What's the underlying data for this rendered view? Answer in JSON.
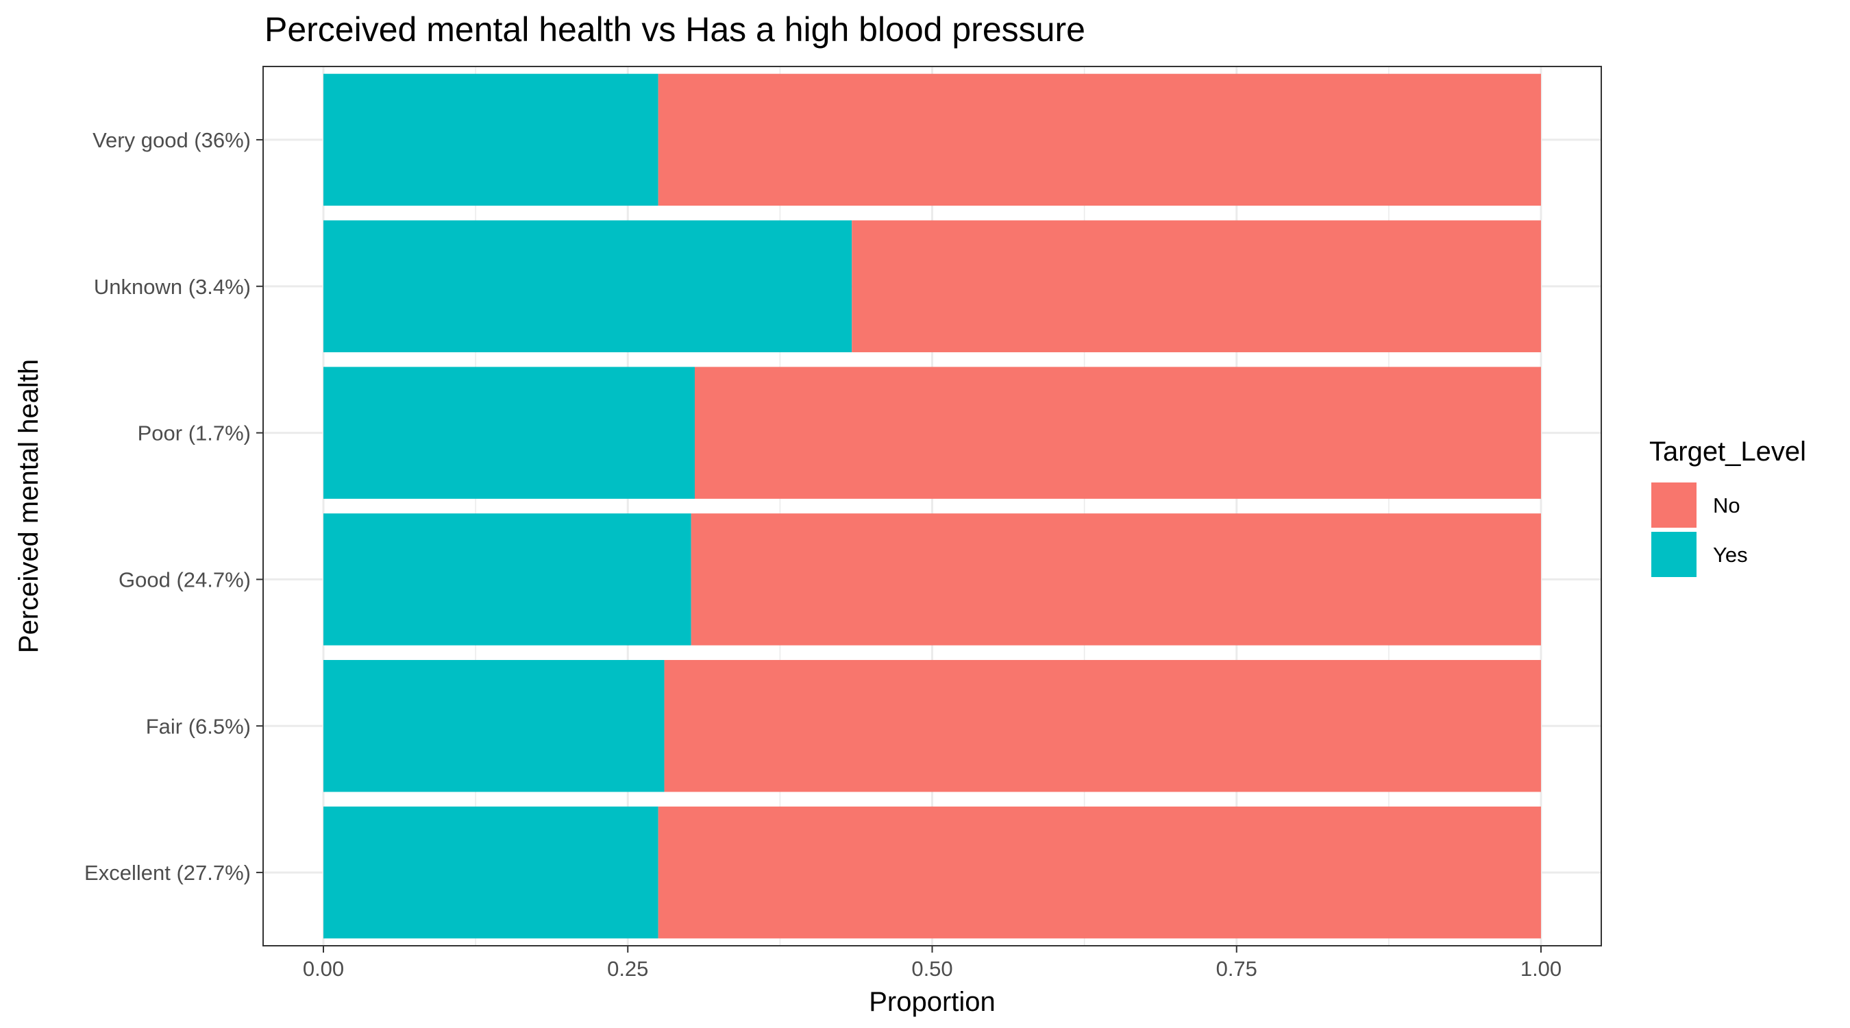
{
  "chart_data": {
    "type": "bar",
    "orientation": "horizontal",
    "stacked": true,
    "title": "Perceived mental health  vs Has a high blood pressure",
    "xlabel": "Proportion",
    "ylabel": "Perceived mental health",
    "xlim": [
      0,
      1
    ],
    "x_ticks": [
      "0.00",
      "0.25",
      "0.50",
      "0.75",
      "1.00"
    ],
    "categories": [
      "Excellent (27.7%)",
      "Fair (6.5%)",
      "Good (24.7%)",
      "Poor (1.7%)",
      "Unknown (3.4%)",
      "Very good (36%)"
    ],
    "series": [
      {
        "name": "Yes",
        "color": "#00BFC4",
        "values": [
          0.275,
          0.28,
          0.302,
          0.305,
          0.434,
          0.275
        ]
      },
      {
        "name": "No",
        "color": "#F8766D",
        "values": [
          0.725,
          0.72,
          0.698,
          0.695,
          0.566,
          0.725
        ]
      }
    ],
    "legend": {
      "title": "Target_Level",
      "position": "right",
      "entries": [
        {
          "label": "No",
          "color": "#F8766D"
        },
        {
          "label": "Yes",
          "color": "#00BFC4"
        }
      ]
    },
    "grid": true
  }
}
